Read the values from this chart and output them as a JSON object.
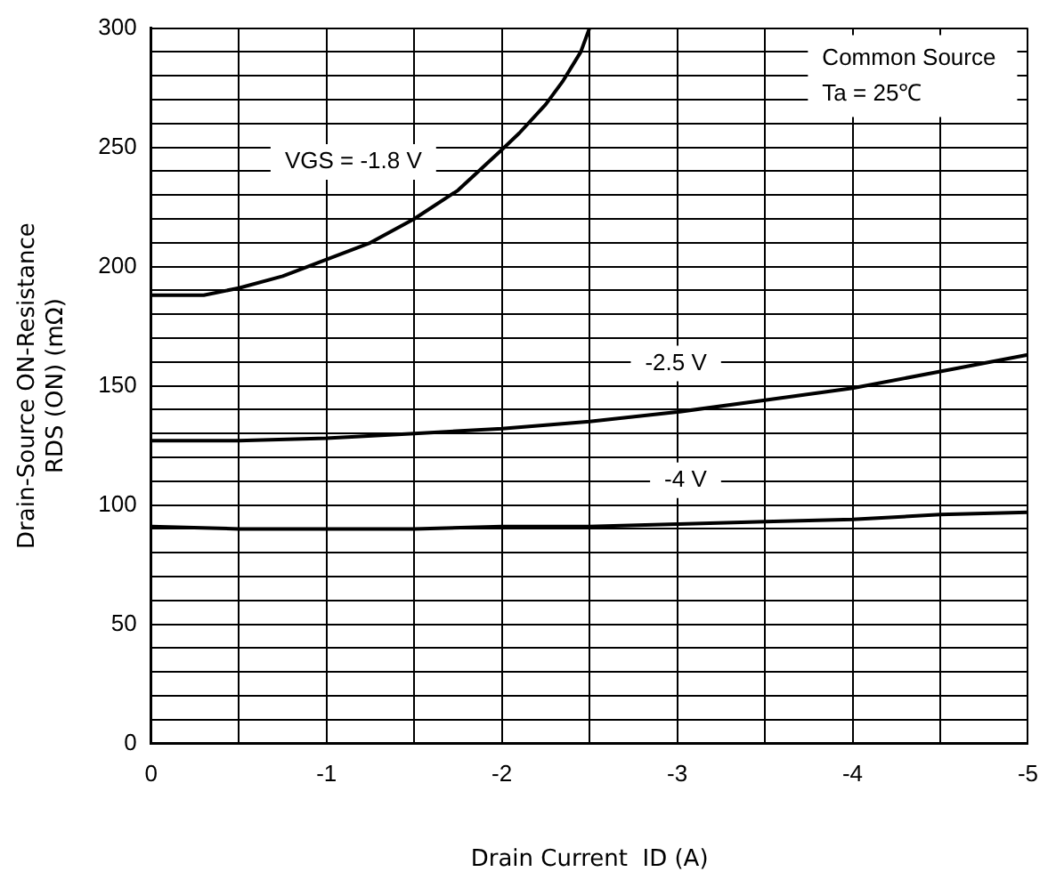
{
  "chart_data": {
    "type": "line",
    "xlabel": "Drain Current  ID (A)",
    "ylabel": "Drain-Source ON-Resistance\nRDS (ON) (mΩ)",
    "annotations": [
      "Common Source\nTa = 25℃"
    ],
    "xlim": [
      0,
      -5
    ],
    "xticks": [
      0,
      {
        "value": -0.5,
        "label": null
      },
      -1,
      {
        "value": -1.5,
        "label": null
      },
      -2,
      {
        "value": -2.5,
        "label": null
      },
      -3,
      {
        "value": -3.5,
        "label": null
      },
      -4,
      {
        "value": -4.5,
        "label": null
      },
      -5
    ],
    "ylim": [
      0,
      300
    ],
    "yticks": [
      0,
      {
        "value": 10,
        "label": null
      },
      {
        "value": 20,
        "label": null
      },
      {
        "value": 30,
        "label": null
      },
      {
        "value": 40,
        "label": null
      },
      50,
      {
        "value": 60,
        "label": null
      },
      {
        "value": 70,
        "label": null
      },
      {
        "value": 80,
        "label": null
      },
      {
        "value": 90,
        "label": null
      },
      100,
      {
        "value": 110,
        "label": null
      },
      {
        "value": 120,
        "label": null
      },
      {
        "value": 130,
        "label": null
      },
      {
        "value": 140,
        "label": null
      },
      150,
      {
        "value": 160,
        "label": null
      },
      {
        "value": 170,
        "label": null
      },
      {
        "value": 180,
        "label": null
      },
      {
        "value": 190,
        "label": null
      },
      200,
      {
        "value": 210,
        "label": null
      },
      {
        "value": 220,
        "label": null
      },
      {
        "value": 230,
        "label": null
      },
      {
        "value": 240,
        "label": null
      },
      250,
      {
        "value": 260,
        "label": null
      },
      {
        "value": 270,
        "label": null
      },
      {
        "value": 280,
        "label": null
      },
      {
        "value": 290,
        "label": null
      },
      300
    ],
    "grid": true,
    "legend": false,
    "line_style": "solid",
    "series": [
      {
        "name": "VGS = -1.8 V",
        "color": "#000000",
        "x": [
          0,
          -0.3,
          -0.5,
          -0.75,
          -1,
          -1.25,
          -1.5,
          -1.75,
          -2,
          -2.1,
          -2.25,
          -2.35,
          -2.45,
          -2.5
        ],
        "values": [
          188,
          188,
          191,
          196,
          203,
          210,
          220,
          232,
          249,
          256,
          268,
          278,
          290,
          300
        ]
      },
      {
        "name": "-2.5 V",
        "color": "#000000",
        "x": [
          0,
          -0.5,
          -1,
          -1.5,
          -2,
          -2.5,
          -3,
          -3.5,
          -4,
          -4.5,
          -5
        ],
        "values": [
          127,
          127,
          128,
          130,
          132,
          135,
          139,
          144,
          149,
          156,
          163
        ]
      },
      {
        "name": "-4 V",
        "color": "#000000",
        "x": [
          0,
          -0.5,
          -1,
          -1.5,
          -2,
          -2.5,
          -3,
          -3.5,
          -4,
          -4.5,
          -5
        ],
        "values": [
          91,
          90,
          90,
          90,
          91,
          91,
          92,
          93,
          94,
          96,
          97
        ]
      }
    ]
  }
}
